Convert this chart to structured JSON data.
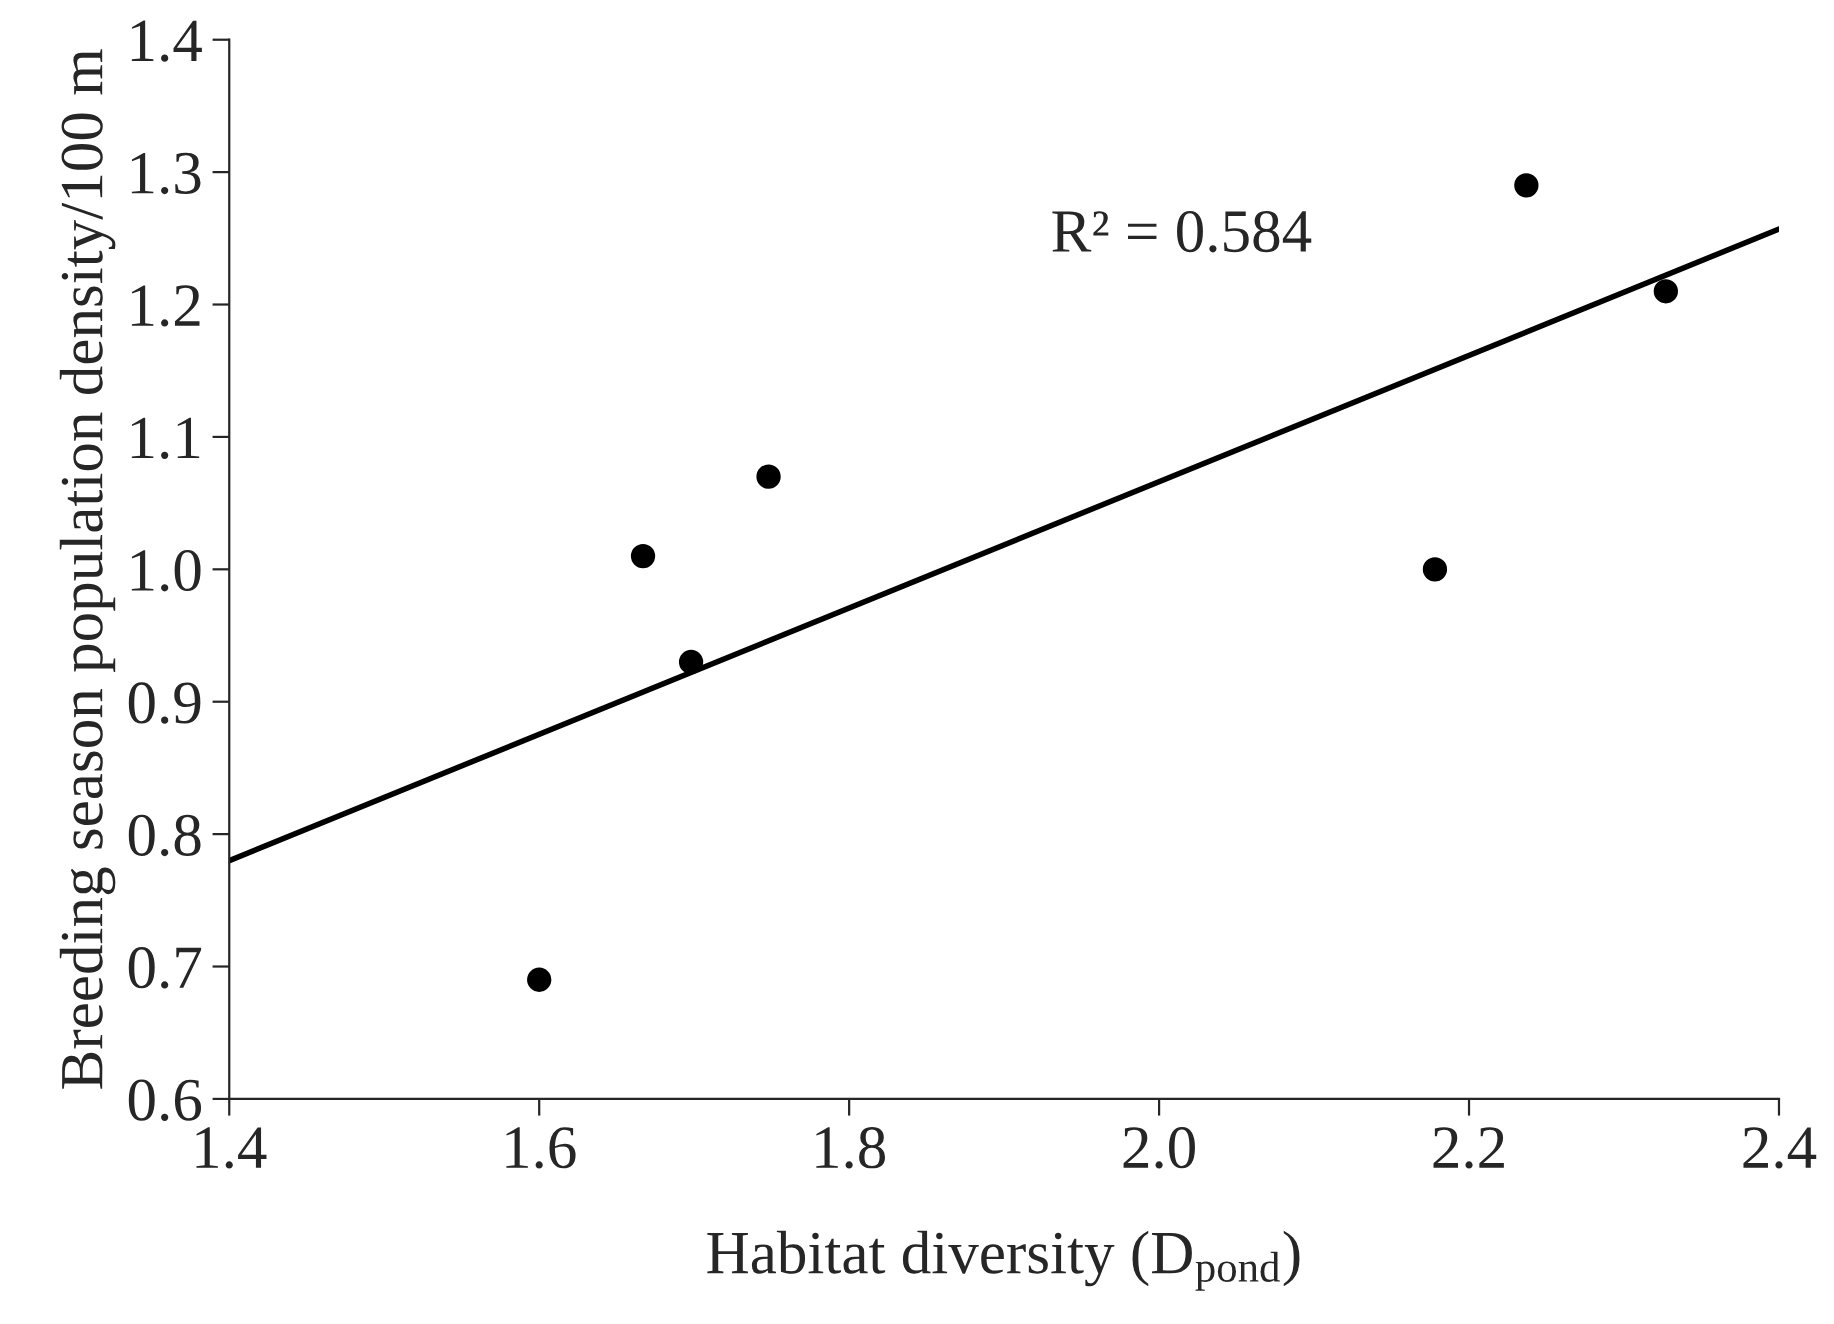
{
  "chart_data": {
    "type": "scatter",
    "xlabel": "Habitat diversity (D$_{pond}$)",
    "ylabel": "Breeding season population density/100 m",
    "series": [
      {
        "color": "#000000",
        "marker": "circle",
        "x": [
          1.6,
          1.667,
          1.698,
          1.748,
          2.178,
          2.237,
          2.327
        ],
        "values": [
          0.69,
          1.01,
          0.93,
          1.07,
          1.0,
          1.29,
          1.21
        ]
      },
      {
        "type": "line",
        "color": "#000000",
        "marker": "none",
        "line_style": "solid",
        "x": [
          1.4,
          2.4
        ],
        "values": [
          0.78,
          1.257
        ]
      }
    ],
    "annotations": [
      "R² = 0.584"
    ],
    "xlim": [
      1.4,
      2.4
    ],
    "xticks": [
      {
        "value": 1.4,
        "label": "1.4"
      },
      {
        "value": 1.6,
        "label": "1.6"
      },
      {
        "value": 1.8,
        "label": "1.8"
      },
      {
        "value": 2.0,
        "label": "2.0"
      },
      {
        "value": 2.2,
        "label": "2.2"
      },
      {
        "value": 2.4,
        "label": "2.4"
      }
    ],
    "ylim": [
      0.6,
      1.4
    ],
    "yticks": [
      {
        "value": 0.6,
        "label": "0.6"
      },
      {
        "value": 0.7,
        "label": "0.7"
      },
      {
        "value": 0.8,
        "label": "0.8"
      },
      {
        "value": 0.9,
        "label": "0.9"
      },
      {
        "value": 1.0,
        "label": "1.0"
      },
      {
        "value": 1.1,
        "label": "1.1"
      },
      {
        "value": 1.2,
        "label": "1.2"
      },
      {
        "value": 1.3,
        "label": "1.3"
      },
      {
        "value": 1.4,
        "label": "1.4"
      }
    ],
    "grid": false,
    "legend": false
  }
}
